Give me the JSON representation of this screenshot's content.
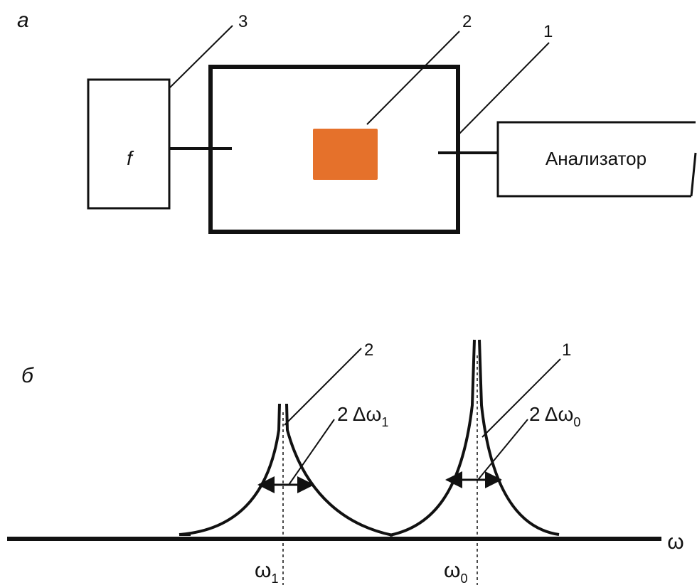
{
  "panel_a": {
    "label": "а",
    "generator_label": "f",
    "analyzer_label": "Анализатор",
    "callouts": [
      "3",
      "2",
      "1"
    ],
    "sample_color": "#E5712B"
  },
  "panel_b": {
    "label": "б",
    "axis_label": "ω",
    "peak_callouts": [
      "2",
      "1"
    ],
    "width_label_1": {
      "prefix": "2 Δω",
      "sub": "1"
    },
    "width_label_0": {
      "prefix": "2 Δω",
      "sub": "0"
    },
    "freq_label_1": {
      "base": "ω",
      "sub": "1"
    },
    "freq_label_0": {
      "base": "ω",
      "sub": "0"
    }
  }
}
